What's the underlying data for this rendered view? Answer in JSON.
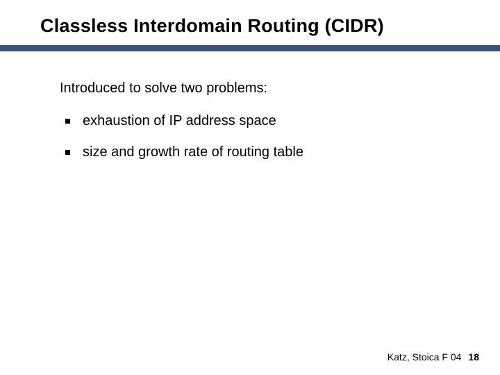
{
  "slide": {
    "title": "Classless Interdomain Routing (CIDR)",
    "intro": "Introduced to solve two problems:",
    "bullets": [
      {
        "text": "exhaustion of IP address space"
      },
      {
        "text": "size and growth rate of routing table"
      }
    ]
  },
  "footer": {
    "attribution": "Katz, Stoica F 04",
    "page": "18"
  },
  "styling": {
    "title_fontsize": 27,
    "title_color": "#000000",
    "underline_color": "#3a527b",
    "underline_height": 9,
    "body_fontsize": 20,
    "body_color": "#000000",
    "bullet_marker_size": 7,
    "bullet_marker_color": "#000000",
    "footer_fontsize": 14,
    "background_color": "#ffffff",
    "font_family": "Arial"
  }
}
